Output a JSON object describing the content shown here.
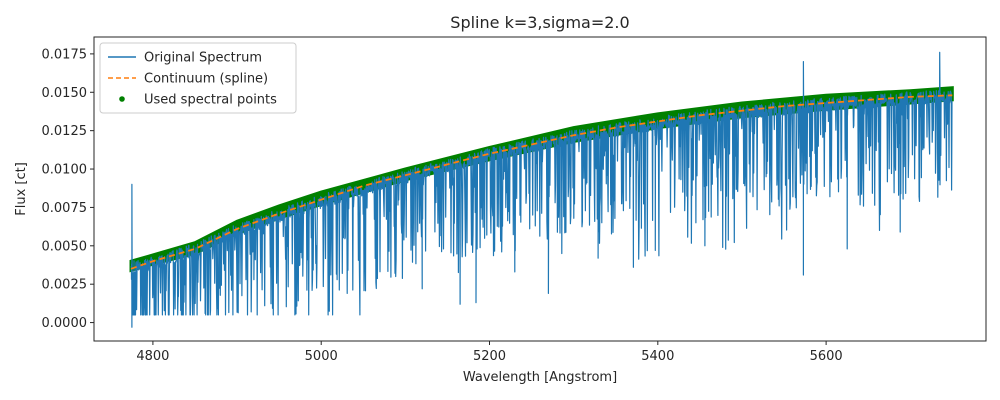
{
  "chart_data": {
    "type": "line",
    "title": "Spline k=3,sigma=2.0",
    "xlabel": "Wavelength [Angstrom]",
    "ylabel": "Flux [ct]",
    "xlim": [
      4730,
      5790
    ],
    "ylim": [
      -0.0012,
      0.0186
    ],
    "xticks": [
      4800,
      5000,
      5200,
      5400,
      5600
    ],
    "xtick_labels": [
      "4800",
      "5000",
      "5200",
      "5400",
      "5600"
    ],
    "yticks": [
      0.0,
      0.0025,
      0.005,
      0.0075,
      0.01,
      0.0125,
      0.015,
      0.0175
    ],
    "ytick_labels": [
      "0.0000",
      "0.0025",
      "0.0050",
      "0.0075",
      "0.0100",
      "0.0125",
      "0.0150",
      "0.0175"
    ],
    "grid": false,
    "legend_position": "upper-left",
    "colors": {
      "spectrum": "#1f77b4",
      "continuum": "#ff7f0e",
      "points": "#008000",
      "axes": "#262626",
      "legend_border": "#cccccc"
    },
    "series": [
      {
        "name": "Original Spectrum",
        "style": "line",
        "x_range": [
          4774,
          5750
        ],
        "continuum_x": [
          4774,
          4800,
          4850,
          4900,
          5000,
          5100,
          5200,
          5300,
          5400,
          5500,
          5600,
          5700,
          5750
        ],
        "continuum_y": [
          0.0038,
          0.0041,
          0.0049,
          0.0062,
          0.0081,
          0.0097,
          0.0111,
          0.0123,
          0.0132,
          0.0139,
          0.0144,
          0.0148,
          0.0149
        ],
        "deep_absorption_lines": [
          {
            "x": 4775,
            "y": -0.0003
          },
          {
            "x": 4862,
            "y": 0.0006
          },
          {
            "x": 4920,
            "y": 0.0028
          },
          {
            "x": 4970,
            "y": 0.0017
          },
          {
            "x": 5120,
            "y": 0.0022
          },
          {
            "x": 5165,
            "y": 0.0012
          },
          {
            "x": 5184,
            "y": 0.0013
          },
          {
            "x": 5230,
            "y": 0.0033
          },
          {
            "x": 5270,
            "y": 0.0019
          },
          {
            "x": 5329,
            "y": 0.0042
          },
          {
            "x": 5371,
            "y": 0.0036
          },
          {
            "x": 5397,
            "y": 0.0047
          },
          {
            "x": 5456,
            "y": 0.005
          },
          {
            "x": 5573,
            "y": 0.0031
          },
          {
            "x": 5625,
            "y": 0.0048
          },
          {
            "x": 5688,
            "y": 0.0059
          }
        ],
        "spikes": [
          {
            "x": 4775,
            "y": 0.009
          },
          {
            "x": 5573,
            "y": 0.017
          },
          {
            "x": 5735,
            "y": 0.0176
          }
        ]
      },
      {
        "name": "Continuum (spline)",
        "style": "dashed",
        "x": [
          4774,
          4800,
          4850,
          4900,
          4950,
          5000,
          5050,
          5100,
          5150,
          5200,
          5250,
          5300,
          5350,
          5400,
          5450,
          5500,
          5550,
          5600,
          5650,
          5700,
          5750
        ],
        "y": [
          0.0035,
          0.004,
          0.0048,
          0.0061,
          0.0071,
          0.008,
          0.0089,
          0.0096,
          0.0103,
          0.011,
          0.0116,
          0.0122,
          0.0127,
          0.0131,
          0.0135,
          0.0138,
          0.0141,
          0.0143,
          0.0145,
          0.0147,
          0.0148
        ]
      },
      {
        "name": "Used spectral points",
        "style": "scatter",
        "band_x": [
          4774,
          4800,
          4850,
          4900,
          4950,
          5000,
          5100,
          5200,
          5300,
          5400,
          5500,
          5600,
          5700,
          5750
        ],
        "band_y_low": [
          0.0034,
          0.0038,
          0.0045,
          0.0058,
          0.0068,
          0.0077,
          0.0093,
          0.0106,
          0.0118,
          0.0127,
          0.0134,
          0.0139,
          0.0143,
          0.0145
        ],
        "band_y_high": [
          0.004,
          0.0044,
          0.0052,
          0.0066,
          0.0076,
          0.0085,
          0.01,
          0.0114,
          0.0127,
          0.0136,
          0.0143,
          0.0148,
          0.0151,
          0.0153
        ]
      }
    ]
  }
}
